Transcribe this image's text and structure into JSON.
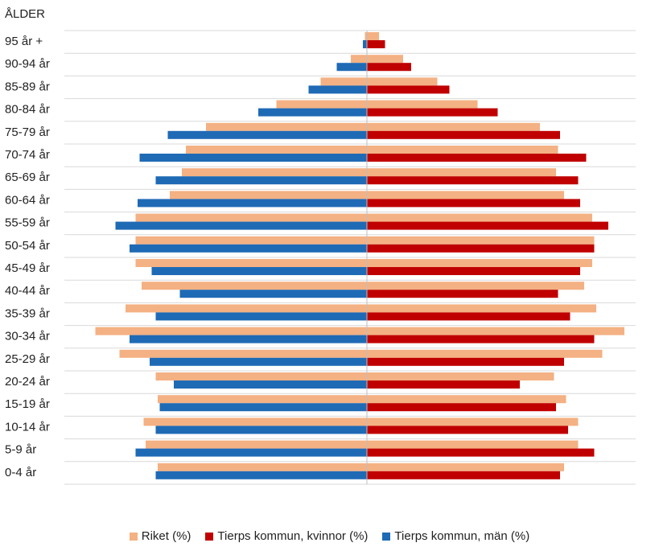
{
  "chart_data": {
    "type": "bar",
    "orientation": "horizontal",
    "layout": "population-pyramid",
    "y_axis_title": "ÅLDER",
    "categories": [
      "95 år +",
      "90-94 år",
      "85-89 år",
      "80-84 år",
      "75-79 år",
      "70-74 år",
      "65-69 år",
      "60-64 år",
      "55-59 år",
      "50-54 år",
      "45-49 år",
      "40-44 år",
      "35-39 år",
      "30-34 år",
      "25-29 år",
      "20-24 år",
      "15-19 år",
      "10-14 år",
      "5-9 år",
      "0-4 år"
    ],
    "series": [
      {
        "name": "Riket (%)",
        "side": "both",
        "color": "#f4b183",
        "values_left": [
          -0.01,
          -0.08,
          -0.23,
          -0.45,
          -0.8,
          -0.9,
          -0.92,
          -0.98,
          -1.15,
          -1.15,
          -1.15,
          -1.12,
          -1.2,
          -1.35,
          -1.23,
          -1.05,
          -1.04,
          -1.11,
          -1.1,
          -1.04
        ],
        "values_right": [
          0.06,
          0.18,
          0.35,
          0.55,
          0.86,
          0.95,
          0.94,
          0.98,
          1.12,
          1.13,
          1.12,
          1.08,
          1.14,
          1.28,
          1.17,
          0.93,
          0.99,
          1.05,
          1.05,
          0.98
        ]
      },
      {
        "name": "Tierps kommun, kvinnor (%)",
        "side": "right",
        "color": "#c00000",
        "values": [
          0.09,
          0.22,
          0.41,
          0.65,
          0.96,
          1.09,
          1.05,
          1.06,
          1.2,
          1.13,
          1.06,
          0.95,
          1.01,
          1.13,
          0.98,
          0.76,
          0.94,
          1.0,
          1.13,
          0.96
        ]
      },
      {
        "name": "Tierps kommun, män (%)",
        "side": "left",
        "color": "#1f6ab5",
        "values": [
          -0.02,
          -0.15,
          -0.29,
          -0.54,
          -0.99,
          -1.13,
          -1.05,
          -1.14,
          -1.25,
          -1.18,
          -1.07,
          -0.93,
          -1.05,
          -1.18,
          -1.08,
          -0.96,
          -1.03,
          -1.05,
          -1.15,
          -1.05
        ]
      }
    ],
    "legend_position": "bottom",
    "grid": "horizontal"
  }
}
